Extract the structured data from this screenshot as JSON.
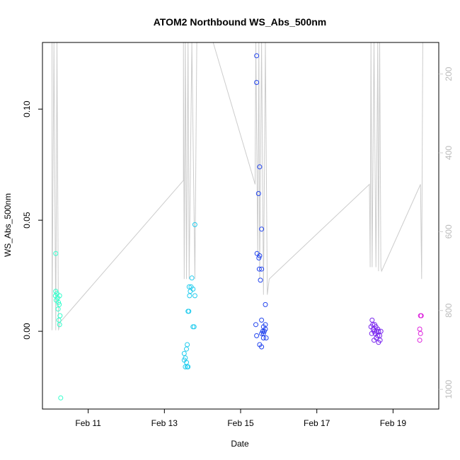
{
  "chart_data": {
    "type": "scatter",
    "title": "ATOM2 Northbound WS_Abs_500nm",
    "xlabel": "Date",
    "ylabel": "WS_Abs_500nm",
    "x_ticks": [
      "Feb 11",
      "Feb 13",
      "Feb 15",
      "Feb 17",
      "Feb 19"
    ],
    "y_ticks": [
      "0.00",
      "0.05",
      "0.10"
    ],
    "y2_ticks": [
      "200",
      "400",
      "600",
      "800",
      "1000"
    ],
    "xlim": [
      9.8,
      20.2
    ],
    "ylim": [
      -0.035,
      0.13
    ],
    "y2lim": [
      1050,
      120
    ],
    "grid": false,
    "legend": "none",
    "secondary_color": "#cccccc",
    "series": [
      {
        "color": "#33ffcc",
        "points": [
          [
            10.15,
            0.035
          ],
          [
            10.15,
            0.018
          ],
          [
            10.18,
            0.017
          ],
          [
            10.14,
            0.016
          ],
          [
            10.2,
            0.015
          ],
          [
            10.16,
            0.014
          ],
          [
            10.22,
            0.013
          ],
          [
            10.25,
            0.016
          ],
          [
            10.24,
            0.012
          ],
          [
            10.21,
            0.01
          ],
          [
            10.26,
            0.007
          ],
          [
            10.23,
            0.005
          ],
          [
            10.25,
            0.003
          ],
          [
            10.28,
            -0.03
          ]
        ]
      },
      {
        "color": "#22ccee",
        "points": [
          [
            13.8,
            0.048
          ],
          [
            13.72,
            0.024
          ],
          [
            13.65,
            0.02
          ],
          [
            13.7,
            0.02
          ],
          [
            13.75,
            0.019
          ],
          [
            13.68,
            0.018
          ],
          [
            13.66,
            0.016
          ],
          [
            13.8,
            0.016
          ],
          [
            13.62,
            0.009
          ],
          [
            13.64,
            0.009
          ],
          [
            13.75,
            0.002
          ],
          [
            13.78,
            0.002
          ],
          [
            13.6,
            -0.006
          ],
          [
            13.58,
            -0.008
          ],
          [
            13.52,
            -0.01
          ],
          [
            13.55,
            -0.012
          ],
          [
            13.52,
            -0.013
          ],
          [
            13.58,
            -0.014
          ],
          [
            13.55,
            -0.016
          ],
          [
            13.6,
            -0.016
          ],
          [
            13.62,
            -0.016
          ]
        ]
      },
      {
        "color": "#2244ee",
        "points": [
          [
            15.42,
            0.124
          ],
          [
            15.42,
            0.112
          ],
          [
            15.5,
            0.074
          ],
          [
            15.47,
            0.062
          ],
          [
            15.55,
            0.046
          ],
          [
            15.43,
            0.035
          ],
          [
            15.5,
            0.034
          ],
          [
            15.48,
            0.033
          ],
          [
            15.49,
            0.028
          ],
          [
            15.55,
            0.028
          ],
          [
            15.52,
            0.023
          ],
          [
            15.65,
            0.012
          ],
          [
            15.55,
            0.005
          ],
          [
            15.4,
            0.003
          ],
          [
            15.65,
            0.003
          ],
          [
            15.6,
            0.002
          ],
          [
            15.65,
            0.001
          ],
          [
            15.58,
            0.0
          ],
          [
            15.62,
            0.0
          ],
          [
            15.55,
            -0.001
          ],
          [
            15.6,
            -0.001
          ],
          [
            15.42,
            -0.002
          ],
          [
            15.6,
            -0.003
          ],
          [
            15.67,
            -0.003
          ],
          [
            15.5,
            -0.006
          ],
          [
            15.55,
            -0.007
          ]
        ]
      },
      {
        "color": "#7722ee",
        "points": [
          [
            18.45,
            0.005
          ],
          [
            18.47,
            0.003
          ],
          [
            18.52,
            0.003
          ],
          [
            18.55,
            0.002
          ],
          [
            18.42,
            0.002
          ],
          [
            18.6,
            0.001
          ],
          [
            18.48,
            0.001
          ],
          [
            18.5,
            0.0
          ],
          [
            18.57,
            0.0
          ],
          [
            18.62,
            0.0
          ],
          [
            18.68,
            0.0
          ],
          [
            18.44,
            -0.001
          ],
          [
            18.53,
            -0.001
          ],
          [
            18.6,
            -0.002
          ],
          [
            18.65,
            -0.002
          ],
          [
            18.56,
            -0.003
          ],
          [
            18.5,
            -0.004
          ],
          [
            18.66,
            -0.004
          ],
          [
            18.62,
            -0.005
          ]
        ]
      },
      {
        "color": "#dd22dd",
        "points": [
          [
            19.72,
            0.007
          ],
          [
            19.74,
            0.007
          ],
          [
            19.7,
            0.001
          ],
          [
            19.72,
            -0.001
          ],
          [
            19.7,
            -0.004
          ]
        ]
      }
    ],
    "secondary_line": [
      [
        10.05,
        120
      ],
      [
        10.05,
        850
      ],
      [
        10.1,
        120
      ],
      [
        10.15,
        850
      ],
      [
        10.18,
        120
      ],
      [
        10.22,
        850
      ],
      [
        10.26,
        830
      ],
      [
        13.5,
        470
      ],
      [
        13.5,
        120
      ],
      [
        13.52,
        720
      ],
      [
        13.55,
        120
      ],
      [
        13.58,
        720
      ],
      [
        13.62,
        120
      ],
      [
        13.65,
        720
      ],
      [
        13.72,
        120
      ],
      [
        13.8,
        720
      ],
      [
        13.85,
        120
      ],
      [
        14.28,
        120
      ],
      [
        15.38,
        480
      ],
      [
        15.4,
        120
      ],
      [
        15.45,
        660
      ],
      [
        15.48,
        120
      ],
      [
        15.5,
        720
      ],
      [
        15.55,
        120
      ],
      [
        15.6,
        760
      ],
      [
        15.65,
        120
      ],
      [
        15.7,
        760
      ],
      [
        15.75,
        720
      ],
      [
        18.38,
        480
      ],
      [
        18.4,
        690
      ],
      [
        18.42,
        120
      ],
      [
        18.45,
        690
      ],
      [
        18.5,
        120
      ],
      [
        18.55,
        690
      ],
      [
        18.6,
        120
      ],
      [
        18.62,
        700
      ],
      [
        18.65,
        120
      ],
      [
        18.68,
        690
      ],
      [
        18.7,
        700
      ],
      [
        19.72,
        480
      ],
      [
        19.75,
        720
      ],
      [
        19.78,
        120
      ]
    ]
  }
}
